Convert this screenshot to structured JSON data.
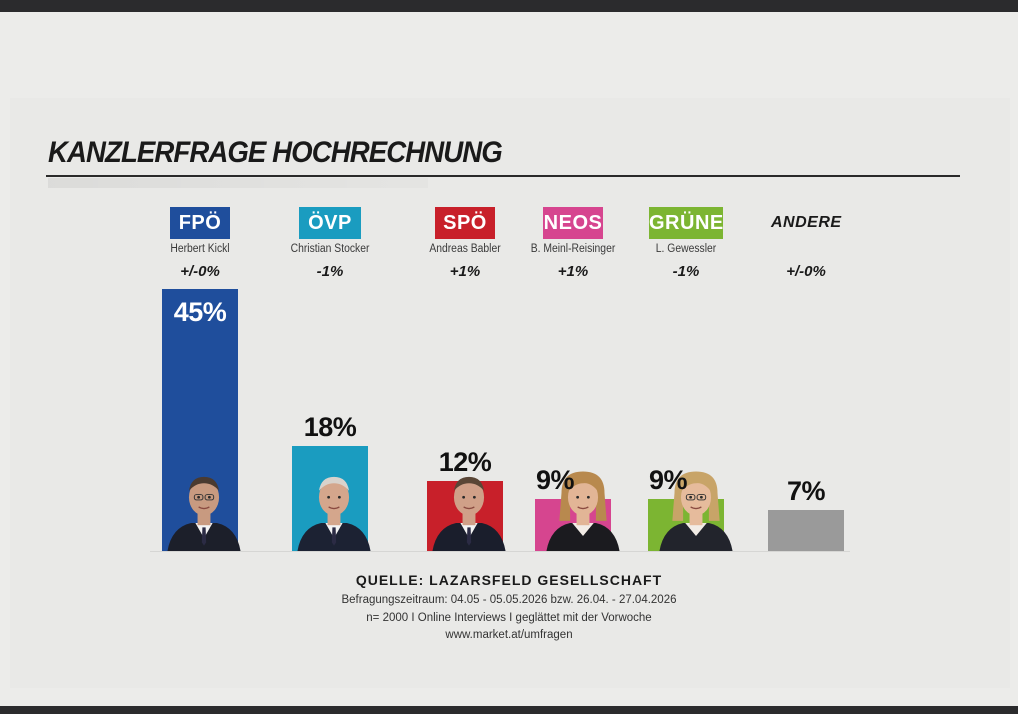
{
  "title": "KANZLERFRAGE HOCHRECHNUNG",
  "chart_data": {
    "type": "bar",
    "title": "KANZLERFRAGE HOCHRECHNUNG",
    "unit": "%",
    "ylim": [
      0,
      45
    ],
    "categories": [
      "FPÖ",
      "ÖVP",
      "SPÖ",
      "NEOS",
      "GRÜNE",
      "ANDERE"
    ],
    "candidates": [
      "Herbert Kickl",
      "Christian Stocker",
      "Andreas Babler",
      "B. Meinl-Reisinger",
      "L. Gewessler",
      ""
    ],
    "changes": [
      "+/-0%",
      "-1%",
      "+1%",
      "+1%",
      "-1%",
      "+/-0%"
    ],
    "values": [
      45,
      18,
      12,
      9,
      9,
      7
    ],
    "value_labels": [
      "45%",
      "18%",
      "12%",
      "9%",
      "9%",
      "7%"
    ],
    "colors": [
      "#1f4e9c",
      "#1a9cc0",
      "#c8202a",
      "#d6458f",
      "#7cb532",
      "#9a9a9a"
    ],
    "has_photo": [
      true,
      true,
      true,
      true,
      true,
      false
    ],
    "photo_icons": [
      "portrait-man-icon",
      "portrait-man-icon",
      "portrait-man-icon",
      "portrait-woman-icon",
      "portrait-woman-icon",
      ""
    ]
  },
  "source": {
    "title": "QUELLE: LAZARSFELD GESELLSCHAFT",
    "line1": "Befragungszeitraum: 04.05 - 05.05.2026 bzw. 26.04. - 27.04.2026",
    "line2": "n= 2000 I Online Interviews I geglättet mit der Vorwoche",
    "line3": "www.market.at/umfragen"
  }
}
